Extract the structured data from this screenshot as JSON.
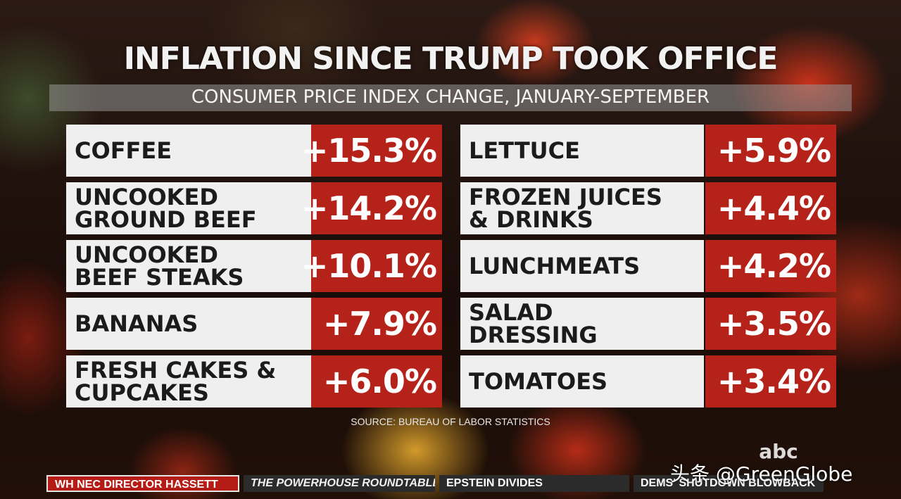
{
  "title": "INFLATION SINCE TRUMP TOOK OFFICE",
  "subtitle": "CONSUMER PRICE INDEX CHANGE, JANUARY-SEPTEMBER",
  "left_items": [
    {
      "label": "COFFEE",
      "value": "+15.3%"
    },
    {
      "label": "UNCOOKED\nGROUND BEEF",
      "value": "+14.2%"
    },
    {
      "label": "UNCOOKED\nBEEF STEAKS",
      "value": "+10.1%"
    },
    {
      "label": "BANANAS",
      "value": "+7.9%"
    },
    {
      "label": "FRESH CAKES &\nCUPCAKES",
      "value": "+6.0%"
    }
  ],
  "right_items": [
    {
      "label": "LETTUCE",
      "value": "+5.9%"
    },
    {
      "label": "FROZEN JUICES\n& DRINKS",
      "value": "+4.4%"
    },
    {
      "label": "LUNCHMEATS",
      "value": "+4.2%"
    },
    {
      "label": "SALAD\nDRESSING",
      "value": "+3.5%"
    },
    {
      "label": "TOMATOES",
      "value": "+3.4%"
    }
  ],
  "source": "SOURCE: BUREAU OF LABOR STATISTICS",
  "network_logo": "abc",
  "ticker": [
    "WH NEC DIRECTOR HASSETT",
    "THE POWERHOUSE ROUNDTABLE",
    "EPSTEIN DIVIDES",
    "DEMS' SHUTDOWN BLOWBACK"
  ],
  "watermark": "头条 @GreenGlobe",
  "colors": {
    "value_bg": "#b5221a",
    "label_bg": "#efefef"
  }
}
